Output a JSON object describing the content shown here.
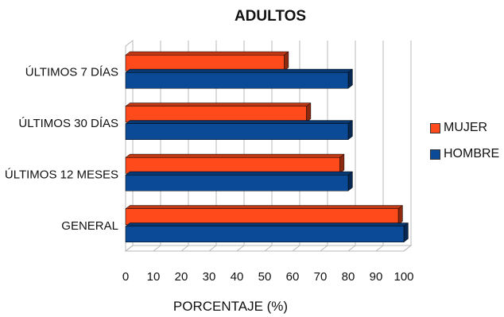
{
  "chart_data": {
    "type": "bar",
    "orientation": "horizontal",
    "title": "ADULTOS",
    "xlabel": "PORCENTAJE (%)",
    "ylabel": "",
    "xlim": [
      0,
      100
    ],
    "x_ticks": [
      0,
      10,
      20,
      30,
      40,
      50,
      60,
      70,
      80,
      90,
      100
    ],
    "categories": [
      "ÚLTIMOS 7 DÍAS",
      "ÚLTIMOS 30 DÍAS",
      "ÚLTIMOS 12 MESES",
      "GENERAL"
    ],
    "series": [
      {
        "name": "MUJER",
        "color": "#ff4a1c",
        "values": [
          57,
          65,
          77,
          98
        ]
      },
      {
        "name": "HOMBRE",
        "color": "#0a4a96",
        "values": [
          80,
          80,
          80,
          100
        ]
      }
    ],
    "grid": true,
    "legend": "right",
    "style": "3d"
  }
}
